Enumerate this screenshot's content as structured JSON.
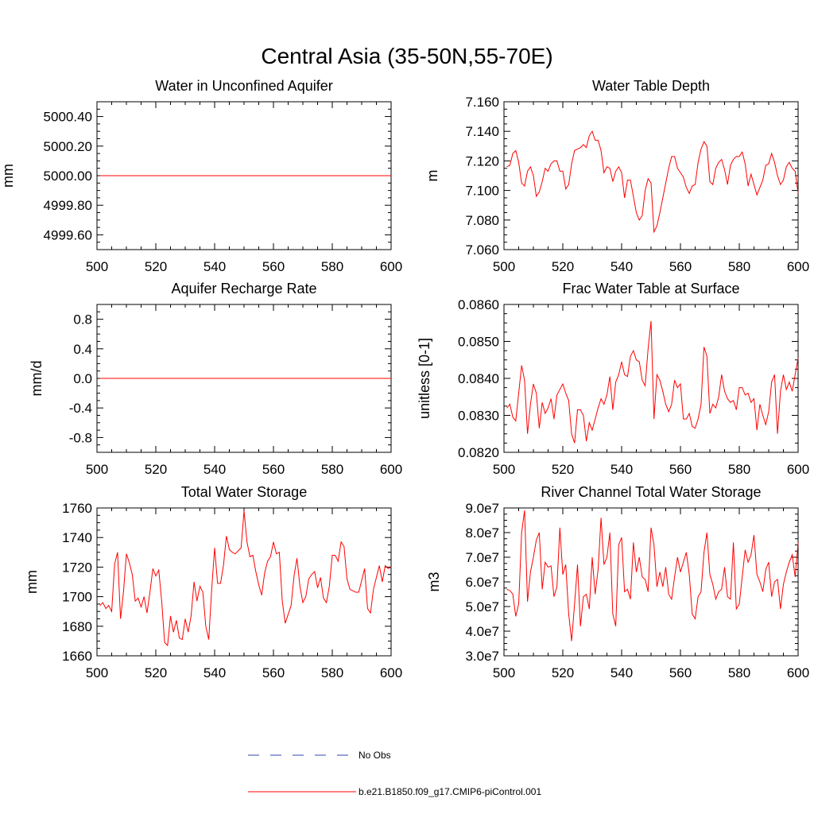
{
  "figure": {
    "title": "Central Asia (35-50N,55-70E)",
    "line_color": "#ff0000",
    "obs_color": "#3344aa"
  },
  "legend": [
    {
      "label": "No Obs",
      "style": "dashed",
      "color": "#3344aa"
    },
    {
      "label": "b.e21.B1850.f09_g17.CMIP6-piControl.001",
      "style": "solid",
      "color": "#ff0000"
    }
  ],
  "chart_data": [
    {
      "type": "line",
      "title": "Water in Unconfined Aquifer",
      "ylabel": "mm",
      "xlim": [
        500,
        600
      ],
      "ylim": [
        4999.5,
        5000.5
      ],
      "xticks": [
        500,
        520,
        540,
        560,
        580,
        600
      ],
      "xtick_labels": [
        "500",
        "520",
        "540",
        "560",
        "580",
        "600"
      ],
      "yticks": [
        4999.6,
        4999.8,
        5000.0,
        5000.2,
        5000.4
      ],
      "ytick_labels": [
        "4999.60",
        "4999.80",
        "5000.00",
        "5000.20",
        "5000.40"
      ],
      "series": [
        {
          "x": [
            501,
            600
          ],
          "y": [
            5000.0,
            5000.0
          ]
        }
      ]
    },
    {
      "type": "line",
      "title": "Water Table Depth",
      "ylabel": "m",
      "xlim": [
        500,
        600
      ],
      "ylim": [
        7.06,
        7.16
      ],
      "xticks": [
        500,
        520,
        540,
        560,
        580,
        600
      ],
      "xtick_labels": [
        "500",
        "520",
        "540",
        "560",
        "580",
        "600"
      ],
      "yticks": [
        7.06,
        7.08,
        7.1,
        7.12,
        7.14,
        7.16
      ],
      "ytick_labels": [
        "7.060",
        "7.080",
        "7.100",
        "7.120",
        "7.140",
        "7.160"
      ],
      "series": [
        {
          "x": [
            501,
            502,
            503,
            504,
            505,
            506,
            507,
            508,
            509,
            510,
            511,
            512,
            513,
            514,
            515,
            516,
            517,
            518,
            519,
            520,
            521,
            522,
            523,
            524,
            525,
            526,
            527,
            528,
            529,
            530,
            531,
            532,
            533,
            534,
            535,
            536,
            537,
            538,
            539,
            540,
            541,
            542,
            543,
            544,
            545,
            546,
            547,
            548,
            549,
            550,
            551,
            552,
            553,
            554,
            555,
            556,
            557,
            558,
            559,
            560,
            561,
            562,
            563,
            564,
            565,
            566,
            567,
            568,
            569,
            570,
            571,
            572,
            573,
            574,
            575,
            576,
            577,
            578,
            579,
            580,
            581,
            582,
            583,
            584,
            585,
            586,
            587,
            588,
            589,
            590,
            591,
            592,
            593,
            594,
            595,
            596,
            597,
            598,
            599,
            600
          ],
          "y": [
            7.116,
            7.117,
            7.125,
            7.127,
            7.119,
            7.105,
            7.103,
            7.113,
            7.116,
            7.11,
            7.096,
            7.099,
            7.106,
            7.115,
            7.113,
            7.118,
            7.12,
            7.12,
            7.113,
            7.113,
            7.101,
            7.104,
            7.118,
            7.127,
            7.128,
            7.129,
            7.131,
            7.129,
            7.137,
            7.14,
            7.134,
            7.134,
            7.127,
            7.112,
            7.116,
            7.115,
            7.106,
            7.113,
            7.116,
            7.112,
            7.095,
            7.107,
            7.107,
            7.096,
            7.085,
            7.08,
            7.083,
            7.1,
            7.108,
            7.105,
            7.072,
            7.076,
            7.085,
            7.095,
            7.105,
            7.115,
            7.123,
            7.123,
            7.115,
            7.112,
            7.109,
            7.102,
            7.098,
            7.103,
            7.104,
            7.119,
            7.128,
            7.133,
            7.13,
            7.106,
            7.104,
            7.115,
            7.119,
            7.121,
            7.114,
            7.104,
            7.117,
            7.121,
            7.123,
            7.123,
            7.126,
            7.118,
            7.103,
            7.111,
            7.104,
            7.097,
            7.102,
            7.107,
            7.117,
            7.118,
            7.125,
            7.119,
            7.11,
            7.104,
            7.107,
            7.116,
            7.119,
            7.115,
            7.113,
            7.098
          ]
        }
      ]
    },
    {
      "type": "line",
      "title": "Aquifer Recharge Rate",
      "ylabel": "mm/d",
      "xlim": [
        500,
        600
      ],
      "ylim": [
        -1.0,
        1.0
      ],
      "xticks": [
        500,
        520,
        540,
        560,
        580,
        600
      ],
      "xtick_labels": [
        "500",
        "520",
        "540",
        "560",
        "580",
        "600"
      ],
      "yticks": [
        -0.8,
        -0.4,
        0.0,
        0.4,
        0.8
      ],
      "ytick_labels": [
        "-0.8",
        "-0.4",
        "0.0",
        "0.4",
        "0.8"
      ],
      "series": [
        {
          "x": [
            501,
            600
          ],
          "y": [
            0.0,
            0.0
          ]
        }
      ]
    },
    {
      "type": "line",
      "title": "Frac Water Table at Surface",
      "ylabel": "unitless [0-1]",
      "xlim": [
        500,
        600
      ],
      "ylim": [
        0.082,
        0.086
      ],
      "xticks": [
        500,
        520,
        540,
        560,
        580,
        600
      ],
      "xtick_labels": [
        "500",
        "520",
        "540",
        "560",
        "580",
        "600"
      ],
      "yticks": [
        0.082,
        0.083,
        0.084,
        0.085,
        0.086
      ],
      "ytick_labels": [
        "0.0820",
        "0.0830",
        "0.0840",
        "0.0850",
        "0.0860"
      ],
      "series": [
        {
          "x": [
            501,
            502,
            503,
            504,
            505,
            506,
            507,
            508,
            509,
            510,
            511,
            512,
            513,
            514,
            515,
            516,
            517,
            518,
            519,
            520,
            521,
            522,
            523,
            524,
            525,
            526,
            527,
            528,
            529,
            530,
            531,
            532,
            533,
            534,
            535,
            536,
            537,
            538,
            539,
            540,
            541,
            542,
            543,
            544,
            545,
            546,
            547,
            548,
            549,
            550,
            551,
            552,
            553,
            554,
            555,
            556,
            557,
            558,
            559,
            560,
            561,
            562,
            563,
            564,
            565,
            566,
            567,
            568,
            569,
            570,
            571,
            572,
            573,
            574,
            575,
            576,
            577,
            578,
            579,
            580,
            581,
            582,
            583,
            584,
            585,
            586,
            587,
            588,
            589,
            590,
            591,
            592,
            593,
            594,
            595,
            596,
            597,
            598,
            599,
            600
          ],
          "y": [
            0.0832,
            0.0833,
            0.08295,
            0.08285,
            0.0836,
            0.08435,
            0.08395,
            0.0825,
            0.0833,
            0.08385,
            0.0836,
            0.08265,
            0.08335,
            0.08305,
            0.0832,
            0.08345,
            0.0829,
            0.08355,
            0.0837,
            0.08385,
            0.0836,
            0.0834,
            0.0825,
            0.08225,
            0.08315,
            0.08315,
            0.083,
            0.0823,
            0.0828,
            0.0826,
            0.0829,
            0.0832,
            0.08345,
            0.0833,
            0.08355,
            0.08405,
            0.08315,
            0.0839,
            0.0841,
            0.08445,
            0.0841,
            0.08405,
            0.0846,
            0.08475,
            0.0845,
            0.08445,
            0.08395,
            0.0838,
            0.0848,
            0.08555,
            0.0829,
            0.0841,
            0.08395,
            0.08365,
            0.0833,
            0.0831,
            0.0833,
            0.08395,
            0.08375,
            0.08385,
            0.0829,
            0.0829,
            0.08305,
            0.0827,
            0.08265,
            0.0829,
            0.0833,
            0.08485,
            0.0846,
            0.08305,
            0.0833,
            0.0832,
            0.0835,
            0.0841,
            0.08365,
            0.08345,
            0.08335,
            0.0834,
            0.08315,
            0.08375,
            0.08375,
            0.08355,
            0.0836,
            0.08335,
            0.08345,
            0.0826,
            0.0833,
            0.083,
            0.08275,
            0.0831,
            0.0839,
            0.0841,
            0.0825,
            0.08365,
            0.0841,
            0.0837,
            0.0839,
            0.08365,
            0.0841,
            0.08455
          ]
        }
      ]
    },
    {
      "type": "line",
      "title": "Total Water Storage",
      "ylabel": "mm",
      "xlim": [
        500,
        600
      ],
      "ylim": [
        1660,
        1760
      ],
      "xticks": [
        500,
        520,
        540,
        560,
        580,
        600
      ],
      "xtick_labels": [
        "500",
        "520",
        "540",
        "560",
        "580",
        "600"
      ],
      "yticks": [
        1660,
        1680,
        1700,
        1720,
        1740,
        1760
      ],
      "ytick_labels": [
        "1660",
        "1680",
        "1700",
        "1720",
        "1740",
        "1760"
      ],
      "series": [
        {
          "x": [
            501,
            502,
            503,
            504,
            505,
            506,
            507,
            508,
            509,
            510,
            511,
            512,
            513,
            514,
            515,
            516,
            517,
            518,
            519,
            520,
            521,
            522,
            523,
            524,
            525,
            526,
            527,
            528,
            529,
            530,
            531,
            532,
            533,
            534,
            535,
            536,
            537,
            538,
            539,
            540,
            541,
            542,
            543,
            544,
            545,
            546,
            547,
            548,
            549,
            550,
            551,
            552,
            553,
            554,
            555,
            556,
            557,
            558,
            559,
            560,
            561,
            562,
            563,
            564,
            565,
            566,
            567,
            568,
            569,
            570,
            571,
            572,
            573,
            574,
            575,
            576,
            577,
            578,
            579,
            580,
            581,
            582,
            583,
            584,
            585,
            586,
            587,
            588,
            589,
            590,
            591,
            592,
            593,
            594,
            595,
            596,
            597,
            598,
            599,
            600
          ],
          "y": [
            1694,
            1696,
            1692,
            1694,
            1690,
            1722,
            1730,
            1685,
            1703,
            1729,
            1723,
            1715,
            1697,
            1699,
            1693,
            1700,
            1689,
            1703,
            1719,
            1714,
            1718,
            1697,
            1669,
            1667,
            1687,
            1676,
            1684,
            1672,
            1671,
            1685,
            1676,
            1687,
            1710,
            1697,
            1707,
            1703,
            1680,
            1671,
            1705,
            1733,
            1709,
            1709,
            1721,
            1741,
            1732,
            1730,
            1729,
            1731,
            1733,
            1758,
            1737,
            1727,
            1728,
            1717,
            1708,
            1701,
            1716,
            1724,
            1727,
            1737,
            1729,
            1730,
            1697,
            1682,
            1688,
            1694,
            1714,
            1726,
            1707,
            1696,
            1700,
            1712,
            1715,
            1717,
            1706,
            1713,
            1699,
            1696,
            1707,
            1728,
            1728,
            1724,
            1737,
            1734,
            1712,
            1705,
            1704,
            1703,
            1703,
            1711,
            1719,
            1692,
            1689,
            1705,
            1713,
            1721,
            1710,
            1721,
            1719,
            1720
          ]
        }
      ]
    },
    {
      "type": "line",
      "title": "River Channel Total Water Storage",
      "ylabel": "m3",
      "xlim": [
        500,
        600
      ],
      "ylim": [
        30000000,
        90000000
      ],
      "xticks": [
        500,
        520,
        540,
        560,
        580,
        600
      ],
      "xtick_labels": [
        "500",
        "520",
        "540",
        "560",
        "580",
        "600"
      ],
      "yticks": [
        30000000,
        40000000,
        50000000,
        60000000,
        70000000,
        80000000,
        90000000
      ],
      "ytick_labels": [
        "3.0e7",
        "4.0e7",
        "5.0e7",
        "6.0e7",
        "7.0e7",
        "8.0e7",
        "9.0e7"
      ],
      "series": [
        {
          "x": [
            501,
            502,
            503,
            504,
            505,
            506,
            507,
            508,
            509,
            510,
            511,
            512,
            513,
            514,
            515,
            516,
            517,
            518,
            519,
            520,
            521,
            522,
            523,
            524,
            525,
            526,
            527,
            528,
            529,
            530,
            531,
            532,
            533,
            534,
            535,
            536,
            537,
            538,
            539,
            540,
            541,
            542,
            543,
            544,
            545,
            546,
            547,
            548,
            549,
            550,
            551,
            552,
            553,
            554,
            555,
            556,
            557,
            558,
            559,
            560,
            561,
            562,
            563,
            564,
            565,
            566,
            567,
            568,
            569,
            570,
            571,
            572,
            573,
            574,
            575,
            576,
            577,
            578,
            579,
            580,
            581,
            582,
            583,
            584,
            585,
            586,
            587,
            588,
            589,
            590,
            591,
            592,
            593,
            594,
            595,
            596,
            597,
            598,
            599,
            600
          ],
          "y": [
            57000000,
            56500000,
            55000000,
            46000000,
            51000000,
            80000000,
            89000000,
            52000000,
            64000000,
            70000000,
            77000000,
            80000000,
            57000000,
            68000000,
            66000000,
            66500000,
            54000000,
            58000000,
            82000000,
            63000000,
            67000000,
            47000000,
            36000000,
            51000000,
            67000000,
            42000000,
            54000000,
            55000000,
            49000000,
            70000000,
            55000000,
            65000000,
            86000000,
            67000000,
            70000000,
            80000000,
            47000000,
            42000000,
            75000000,
            78000000,
            56000000,
            57000000,
            53000000,
            76000000,
            64000000,
            70000000,
            62000000,
            61000000,
            56000000,
            82000000,
            75000000,
            58000000,
            64000000,
            58000000,
            66000000,
            55000000,
            53000000,
            62000000,
            70000000,
            64000000,
            68000000,
            72000000,
            63000000,
            47000000,
            45000000,
            54000000,
            56000000,
            72000000,
            80000000,
            63000000,
            59000000,
            53000000,
            56000000,
            57000000,
            66000000,
            54000000,
            53000000,
            76000000,
            49000000,
            51000000,
            62000000,
            73000000,
            68000000,
            71000000,
            79000000,
            63000000,
            60000000,
            56000000,
            65000000,
            68000000,
            54000000,
            60000000,
            61000000,
            49000000,
            59000000,
            64000000,
            68000000,
            71000000,
            62000000,
            76000000
          ]
        }
      ]
    }
  ]
}
